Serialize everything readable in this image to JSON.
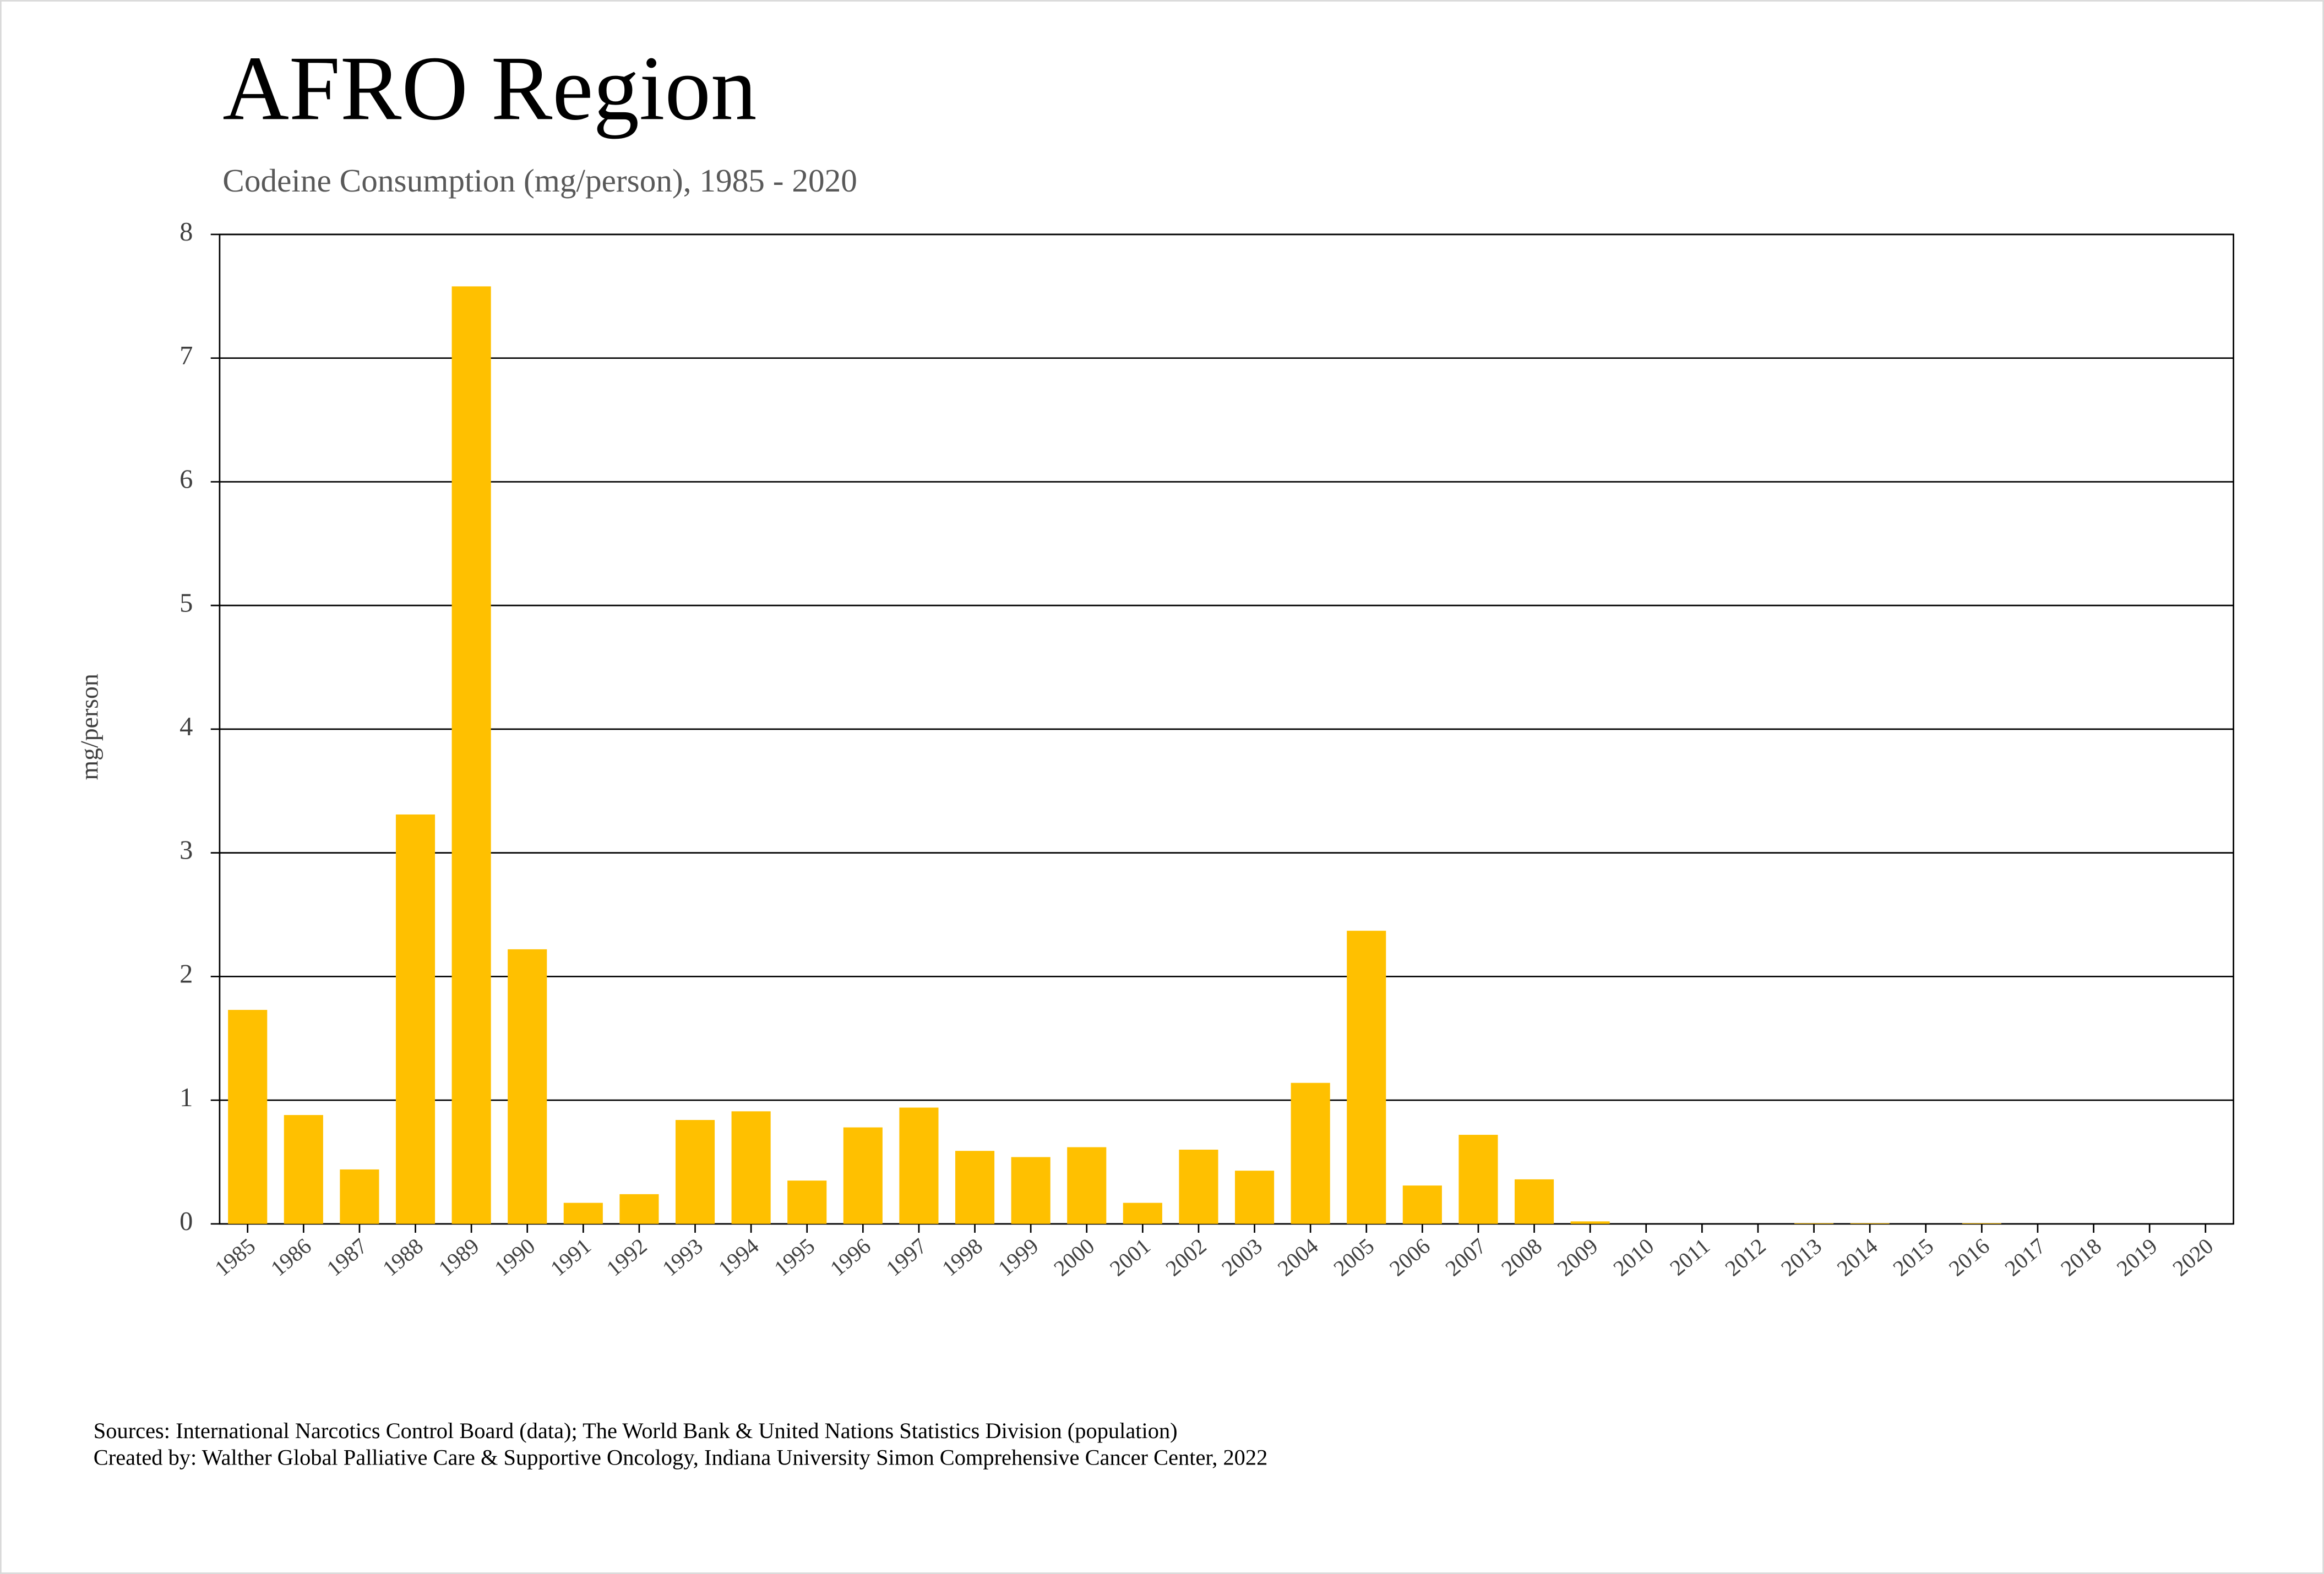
{
  "chart_data": {
    "type": "bar",
    "title": "AFRO Region",
    "subtitle": "Codeine Consumption (mg/person), 1985 - 2020",
    "y_label": "mg/person",
    "categories": [
      "1985",
      "1986",
      "1987",
      "1988",
      "1989",
      "1990",
      "1991",
      "1992",
      "1993",
      "1994",
      "1995",
      "1996",
      "1997",
      "1998",
      "1999",
      "2000",
      "2001",
      "2002",
      "2003",
      "2004",
      "2005",
      "2006",
      "2007",
      "2008",
      "2009",
      "2010",
      "2011",
      "2012",
      "2013",
      "2014",
      "2015",
      "2016",
      "2017",
      "2018",
      "2019",
      "2020"
    ],
    "values": [
      1.73,
      0.88,
      0.44,
      3.31,
      7.58,
      2.22,
      0.17,
      0.24,
      0.84,
      0.91,
      0.35,
      0.78,
      0.94,
      0.59,
      0.54,
      0.62,
      0.17,
      0.6,
      0.43,
      1.14,
      2.37,
      0.31,
      0.72,
      0.36,
      0.02,
      0,
      0,
      0,
      0.005,
      0.005,
      0,
      0.005,
      0,
      0,
      0,
      0
    ],
    "color": "#ffc000",
    "ylim": [
      0,
      8
    ],
    "yticks": [
      0,
      1,
      2,
      3,
      4,
      5,
      6,
      7,
      8
    ],
    "grid": true,
    "notes": [
      "Sources: International Narcotics Control Board (data); The World Bank & United Nations Statistics Division (population)",
      "Created by: Walther Global Palliative Care & Supportive Oncology, Indiana University Simon Comprehensive Cancer Center, 2022"
    ]
  }
}
